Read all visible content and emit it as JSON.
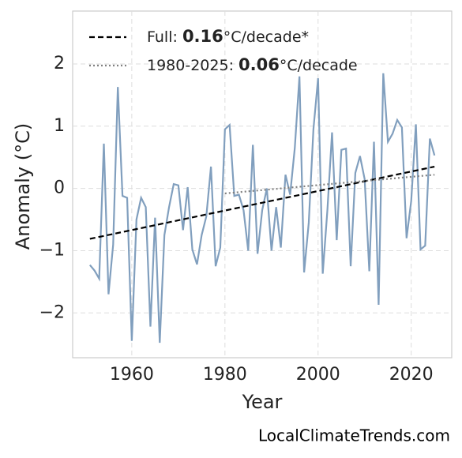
{
  "chart_data": {
    "type": "line",
    "xlabel": "Year",
    "ylabel": "Anomaly (°C)",
    "watermark": "LocalClimateTrends.com",
    "x": [
      1951,
      1952,
      1953,
      1954,
      1955,
      1956,
      1957,
      1958,
      1959,
      1960,
      1961,
      1962,
      1963,
      1964,
      1965,
      1966,
      1967,
      1968,
      1969,
      1970,
      1971,
      1972,
      1973,
      1974,
      1975,
      1976,
      1977,
      1978,
      1979,
      1980,
      1981,
      1982,
      1983,
      1984,
      1985,
      1986,
      1987,
      1988,
      1989,
      1990,
      1991,
      1992,
      1993,
      1994,
      1995,
      1996,
      1997,
      1998,
      1999,
      2000,
      2001,
      2002,
      2003,
      2004,
      2005,
      2006,
      2007,
      2008,
      2009,
      2010,
      2011,
      2012,
      2013,
      2014,
      2015,
      2016,
      2017,
      2018,
      2019,
      2020,
      2021,
      2022,
      2023,
      2024,
      2025
    ],
    "series": [
      {
        "color": "#819fbe",
        "values": [
          -1.23,
          -1.32,
          -1.45,
          0.72,
          -1.7,
          -0.9,
          1.63,
          -0.12,
          -0.15,
          -2.45,
          -0.5,
          -0.15,
          -0.3,
          -2.22,
          -0.47,
          -2.48,
          -0.75,
          -0.3,
          0.07,
          0.05,
          -0.67,
          0.02,
          -0.98,
          -1.22,
          -0.75,
          -0.45,
          0.35,
          -1.25,
          -0.95,
          0.95,
          1.02,
          -0.12,
          -0.1,
          -0.35,
          -1.0,
          0.7,
          -1.05,
          -0.35,
          0.0,
          -1.0,
          -0.3,
          -0.95,
          0.22,
          -0.1,
          0.65,
          1.8,
          -1.35,
          -0.55,
          0.95,
          1.77,
          -1.37,
          -0.35,
          0.9,
          -0.83,
          0.62,
          0.64,
          -1.25,
          0.25,
          0.52,
          0.15,
          -1.33,
          0.75,
          -1.87,
          1.85,
          0.75,
          0.88,
          1.1,
          0.98,
          -0.8,
          -0.2,
          1.03,
          -0.98,
          -0.92,
          0.8,
          0.53
        ]
      },
      {
        "name": "Full: 0.16°C/decade*",
        "color": "#000000",
        "dash": "dashed",
        "x": [
          1951,
          2025
        ],
        "values": [
          -0.81,
          0.35
        ]
      },
      {
        "name": "1980-2025: 0.06°C/decade",
        "color": "#808080",
        "dash": "dotted",
        "x": [
          1980,
          2025
        ],
        "values": [
          -0.08,
          0.22
        ]
      }
    ],
    "xlim": [
      1947.3,
      2028.7
    ],
    "ylim": [
      -2.72,
      2.85
    ],
    "xticks": [
      1960,
      1980,
      2000,
      2020
    ],
    "yticks": [
      {
        "value": -2,
        "label": "−2"
      },
      {
        "value": -1,
        "label": "−1"
      },
      0,
      1,
      2
    ],
    "grid": true,
    "legend": "upper left"
  }
}
